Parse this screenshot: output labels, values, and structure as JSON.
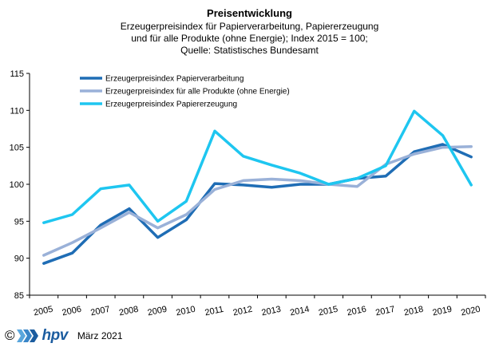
{
  "chart_data": {
    "type": "line",
    "title": "Preisentwicklung",
    "subtitle": [
      "Erzeugerpreisindex  für Papierverarbeitung,  Papiererzeugung",
      "und für alle Produkte (ohne Energie); Index 2015 = 100;",
      "Quelle: Statistisches Bundesamt"
    ],
    "categories": [
      "2005",
      "2006",
      "2007",
      "2008",
      "2009",
      "2010",
      "2011",
      "2012",
      "2013",
      "2014",
      "2015",
      "2016",
      "2017",
      "2018",
      "2019",
      "2020"
    ],
    "ylim": [
      85,
      115
    ],
    "yticks": [
      85,
      90,
      95,
      100,
      105,
      110,
      115
    ],
    "grid": false,
    "legend": "top-left",
    "series": [
      {
        "name": "Erzeugerpreisindex Papierverarbeitung",
        "color": "#1f6db5",
        "values": [
          89.3,
          90.7,
          94.5,
          96.7,
          92.8,
          95.2,
          100.1,
          99.9,
          99.6,
          100.0,
          100.0,
          100.8,
          101.1,
          104.4,
          105.4,
          103.7
        ]
      },
      {
        "name": "Erzeugerpreisindex für alle Produkte (ohne Energie)",
        "color": "#9ab1d8",
        "values": [
          90.4,
          92.1,
          94.1,
          96.2,
          94.1,
          95.9,
          99.3,
          100.5,
          100.7,
          100.5,
          100.0,
          99.7,
          102.7,
          104.1,
          105.0,
          105.1
        ]
      },
      {
        "name": "Erzeugerpreisindex Papiererzeugung",
        "color": "#1ec6f0",
        "values": [
          94.8,
          95.9,
          99.4,
          99.9,
          95.0,
          97.7,
          107.2,
          103.8,
          102.6,
          101.5,
          100.0,
          100.8,
          102.5,
          109.9,
          106.6,
          99.9
        ]
      }
    ]
  },
  "footer": {
    "copyright": "©",
    "brand": "hpv",
    "date": "März 2021",
    "logo_colors": [
      "#5aa6dc",
      "#3a86c8",
      "#1b5c9f"
    ]
  }
}
